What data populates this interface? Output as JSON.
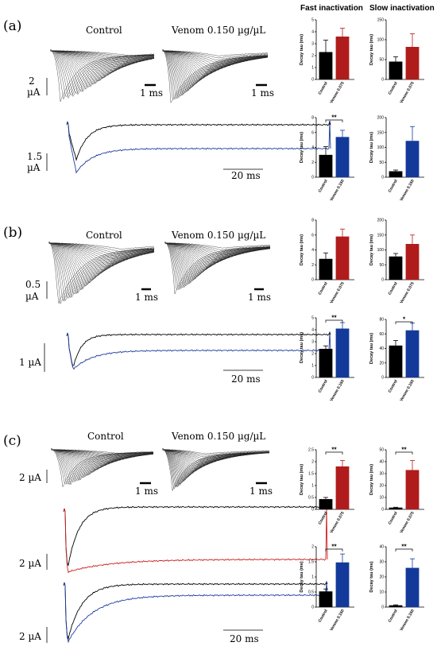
{
  "headers": {
    "fast": "Fast inactivation",
    "slow": "Slow inactivation"
  },
  "panels": [
    {
      "label": "(a)",
      "control_label": "Control",
      "venom_label": "Venom 0.150 µg/µL",
      "scale_current": [
        "2",
        "µA"
      ],
      "scale_time_1": "1 ms",
      "scale_time_2": "1 ms",
      "trace_scale_current": [
        "1.5",
        "µA"
      ],
      "trace_scale_time": "20 ms",
      "trace_colors": [
        "#000000",
        "#1f3c9e"
      ]
    },
    {
      "label": "(b)",
      "control_label": "Control",
      "venom_label": "Venom 0.150 µg/µL",
      "scale_current": [
        "0.5",
        "µA"
      ],
      "scale_time_1": "1 ms",
      "scale_time_2": "1 ms",
      "trace_scale_current": [
        "1 µA"
      ],
      "trace_scale_time": "20 ms",
      "trace_colors": [
        "#000000",
        "#1f3c9e"
      ]
    },
    {
      "label": "(c)",
      "control_label": "Control",
      "venom_label": "Venom 0.150 µg/µL",
      "scale_current": [
        "2 µA"
      ],
      "scale_time_1": "1 ms",
      "scale_time_2": "1 ms",
      "trace_scale_current_1": [
        "2 µA"
      ],
      "trace_scale_current_2": [
        "2 µA"
      ],
      "trace_scale_time": "20 ms",
      "trace_colors_1": [
        "#000000",
        "#cc2020"
      ],
      "trace_colors_2": [
        "#000000",
        "#1f3c9e"
      ]
    }
  ],
  "colors": {
    "control": "#000000",
    "venom075": "#b01c1c",
    "venom150": "#13399a"
  },
  "chart_data": [
    {
      "panel": "a",
      "type": "bar",
      "column": "fast",
      "ylabel": "Decay tau (ms)",
      "ylim": [
        0,
        5
      ],
      "yticks": [
        0,
        1,
        2,
        3,
        4,
        5
      ],
      "categories": [
        "Control",
        "Venom 0.075"
      ],
      "values": [
        2.3,
        3.6
      ],
      "errors": [
        1.0,
        0.7
      ],
      "colors": [
        "#000000",
        "#b01c1c"
      ],
      "significance": ""
    },
    {
      "panel": "a",
      "type": "bar",
      "column": "slow",
      "ylabel": "Decay tau (ms)",
      "ylim": [
        0,
        150
      ],
      "yticks": [
        0,
        50,
        100,
        150
      ],
      "categories": [
        "Control",
        "Venom 0.075"
      ],
      "values": [
        45,
        82
      ],
      "errors": [
        12,
        33
      ],
      "colors": [
        "#000000",
        "#b01c1c"
      ],
      "significance": ""
    },
    {
      "panel": "a",
      "type": "bar",
      "column": "fast",
      "ylabel": "Decay tau (ms)",
      "ylim": [
        0,
        8
      ],
      "yticks": [
        0,
        2,
        4,
        6,
        8
      ],
      "categories": [
        "Control",
        "Venom 0.150"
      ],
      "values": [
        3.0,
        5.4
      ],
      "errors": [
        1.1,
        0.9
      ],
      "colors": [
        "#000000",
        "#13399a"
      ],
      "significance": "**"
    },
    {
      "panel": "a",
      "type": "bar",
      "column": "slow",
      "ylabel": "Decay tau (ms)",
      "ylim": [
        0,
        200
      ],
      "yticks": [
        0,
        50,
        100,
        150,
        200
      ],
      "categories": [
        "Control",
        "Venom 0.150"
      ],
      "values": [
        20,
        122
      ],
      "errors": [
        4,
        48
      ],
      "colors": [
        "#000000",
        "#13399a"
      ],
      "significance": ""
    },
    {
      "panel": "b",
      "type": "bar",
      "column": "fast",
      "ylabel": "Decay tau (ms)",
      "ylim": [
        0,
        8
      ],
      "yticks": [
        0,
        2,
        4,
        6,
        8
      ],
      "categories": [
        "Control",
        "Venom 0.075"
      ],
      "values": [
        2.8,
        5.8
      ],
      "errors": [
        0.8,
        1.0
      ],
      "colors": [
        "#000000",
        "#b01c1c"
      ],
      "significance": ""
    },
    {
      "panel": "b",
      "type": "bar",
      "column": "slow",
      "ylabel": "Decay tau (ms)",
      "ylim": [
        0,
        200
      ],
      "yticks": [
        0,
        50,
        100,
        150,
        200
      ],
      "categories": [
        "Control",
        "Venom 0.075"
      ],
      "values": [
        78,
        120
      ],
      "errors": [
        10,
        30
      ],
      "colors": [
        "#000000",
        "#b01c1c"
      ],
      "significance": ""
    },
    {
      "panel": "b",
      "type": "bar",
      "column": "fast",
      "ylabel": "Decay tau (ms)",
      "ylim": [
        0,
        5
      ],
      "yticks": [
        0,
        1,
        2,
        3,
        4,
        5
      ],
      "categories": [
        "Control",
        "Venom 0.150"
      ],
      "values": [
        2.4,
        4.1
      ],
      "errors": [
        0.25,
        0.5
      ],
      "colors": [
        "#000000",
        "#13399a"
      ],
      "significance": "**"
    },
    {
      "panel": "b",
      "type": "bar",
      "column": "slow",
      "ylabel": "Decay tau (ms)",
      "ylim": [
        0,
        80
      ],
      "yticks": [
        0,
        20,
        40,
        60,
        80
      ],
      "categories": [
        "Control",
        "Venom 0.150"
      ],
      "values": [
        44,
        65
      ],
      "errors": [
        7,
        10
      ],
      "colors": [
        "#000000",
        "#13399a"
      ],
      "significance": "*"
    },
    {
      "panel": "c",
      "type": "bar",
      "column": "fast",
      "ylabel": "Decay tau (ms)",
      "ylim": [
        0,
        2.5
      ],
      "yticks": [
        0.0,
        0.5,
        1.0,
        1.5,
        2.0,
        2.5
      ],
      "categories": [
        "Control",
        "Venom 0.075"
      ],
      "values": [
        0.43,
        1.8
      ],
      "errors": [
        0.07,
        0.25
      ],
      "colors": [
        "#000000",
        "#b01c1c"
      ],
      "significance": "**"
    },
    {
      "panel": "c",
      "type": "bar",
      "column": "slow",
      "ylabel": "Decay tau (ms)",
      "ylim": [
        0,
        50
      ],
      "yticks": [
        0,
        10,
        20,
        30,
        40,
        50
      ],
      "categories": [
        "Control",
        "Venom 0.075"
      ],
      "values": [
        1.5,
        33
      ],
      "errors": [
        0.3,
        8
      ],
      "colors": [
        "#000000",
        "#b01c1c"
      ],
      "significance": "**"
    },
    {
      "panel": "c",
      "type": "bar",
      "column": "fast",
      "ylabel": "Decay tau (ms)",
      "ylim": [
        0,
        2.0
      ],
      "yticks": [
        0.0,
        0.5,
        1.0,
        1.5,
        2.0
      ],
      "categories": [
        "Control",
        "Venom 0.150"
      ],
      "values": [
        0.52,
        1.48
      ],
      "errors": [
        0.08,
        0.28
      ],
      "colors": [
        "#000000",
        "#13399a"
      ],
      "significance": "**"
    },
    {
      "panel": "c",
      "type": "bar",
      "column": "slow",
      "ylabel": "Decay tau (ms)",
      "ylim": [
        0,
        40
      ],
      "yticks": [
        0,
        10,
        20,
        30,
        40
      ],
      "categories": [
        "Control",
        "Venom 0.150"
      ],
      "values": [
        1.2,
        26
      ],
      "errors": [
        0.3,
        6
      ],
      "colors": [
        "#000000",
        "#13399a"
      ],
      "significance": "**"
    }
  ]
}
